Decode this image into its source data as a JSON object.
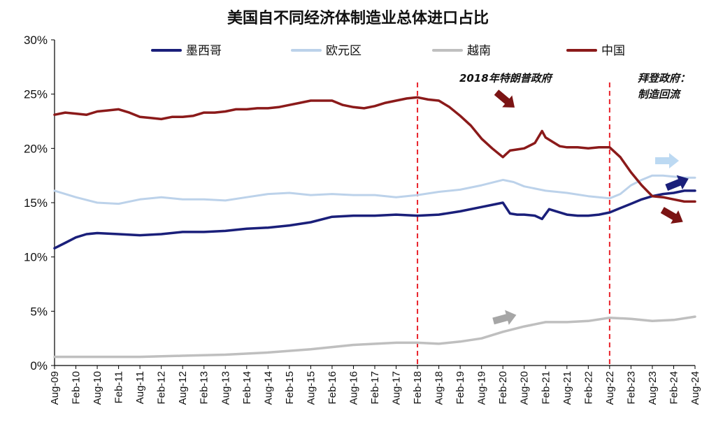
{
  "chart_data": {
    "type": "line",
    "title": "美国自不同经济体制造业总体进口占比",
    "xlabel": "",
    "ylabel": "",
    "ylim": [
      0,
      30
    ],
    "yticks": [
      "0%",
      "5%",
      "10%",
      "15%",
      "20%",
      "25%",
      "30%"
    ],
    "xlim": [
      "2009-08",
      "2024-08"
    ],
    "xticks": [
      "Aug-09",
      "Feb-10",
      "Aug-10",
      "Feb-11",
      "Aug-11",
      "Feb-12",
      "Aug-12",
      "Feb-13",
      "Aug-13",
      "Feb-14",
      "Aug-14",
      "Feb-15",
      "Aug-15",
      "Feb-16",
      "Aug-16",
      "Feb-17",
      "Aug-17",
      "Feb-18",
      "Aug-18",
      "Feb-19",
      "Aug-19",
      "Feb-20",
      "Aug-20",
      "Feb-21",
      "Aug-21",
      "Feb-22",
      "Aug-22",
      "Feb-23",
      "Aug-23",
      "Feb-24",
      "Aug-24"
    ],
    "grid": false,
    "legend_position": "top",
    "series": [
      {
        "name": "墨西哥",
        "color": "#1a1f7a",
        "x": [
          "2009-08",
          "2009-11",
          "2010-02",
          "2010-05",
          "2010-08",
          "2011-02",
          "2011-08",
          "2012-02",
          "2012-08",
          "2013-02",
          "2013-08",
          "2014-02",
          "2014-08",
          "2015-02",
          "2015-08",
          "2016-02",
          "2016-08",
          "2017-02",
          "2017-08",
          "2018-02",
          "2018-08",
          "2019-02",
          "2019-08",
          "2019-11",
          "2020-02",
          "2020-04",
          "2020-06",
          "2020-08",
          "2020-11",
          "2021-01",
          "2021-03",
          "2021-05",
          "2021-08",
          "2021-11",
          "2022-02",
          "2022-05",
          "2022-08",
          "2022-11",
          "2023-02",
          "2023-05",
          "2023-08",
          "2023-11",
          "2024-02",
          "2024-05",
          "2024-08"
        ],
        "values": [
          10.8,
          11.3,
          11.8,
          12.1,
          12.2,
          12.1,
          12.0,
          12.1,
          12.3,
          12.3,
          12.4,
          12.6,
          12.7,
          12.9,
          13.2,
          13.7,
          13.8,
          13.8,
          13.9,
          13.8,
          13.9,
          14.2,
          14.6,
          14.8,
          15.0,
          14.0,
          13.9,
          13.9,
          13.8,
          13.5,
          14.4,
          14.2,
          13.9,
          13.8,
          13.8,
          13.9,
          14.1,
          14.5,
          14.9,
          15.3,
          15.6,
          15.8,
          15.9,
          16.1,
          16.1
        ]
      },
      {
        "name": "欧元区",
        "color": "#bcd2ea",
        "x": [
          "2009-08",
          "2009-11",
          "2010-02",
          "2010-08",
          "2011-02",
          "2011-08",
          "2012-02",
          "2012-08",
          "2013-02",
          "2013-08",
          "2014-02",
          "2014-08",
          "2015-02",
          "2015-08",
          "2016-02",
          "2016-08",
          "2017-02",
          "2017-08",
          "2018-02",
          "2018-08",
          "2019-02",
          "2019-08",
          "2020-02",
          "2020-05",
          "2020-08",
          "2021-02",
          "2021-08",
          "2022-02",
          "2022-05",
          "2022-08",
          "2022-11",
          "2023-02",
          "2023-05",
          "2023-08",
          "2023-11",
          "2024-02",
          "2024-05",
          "2024-08"
        ],
        "values": [
          16.1,
          15.8,
          15.5,
          15.0,
          14.9,
          15.3,
          15.5,
          15.3,
          15.3,
          15.2,
          15.5,
          15.8,
          15.9,
          15.7,
          15.8,
          15.7,
          15.7,
          15.5,
          15.7,
          16.0,
          16.2,
          16.6,
          17.1,
          16.9,
          16.5,
          16.1,
          15.9,
          15.6,
          15.5,
          15.4,
          15.8,
          16.6,
          17.1,
          17.5,
          17.5,
          17.4,
          17.3,
          17.3
        ]
      },
      {
        "name": "越南",
        "color": "#bfbfbf",
        "x": [
          "2009-08",
          "2010-08",
          "2011-08",
          "2012-08",
          "2013-08",
          "2014-08",
          "2015-08",
          "2016-08",
          "2017-08",
          "2018-02",
          "2018-08",
          "2019-02",
          "2019-08",
          "2020-02",
          "2020-08",
          "2021-02",
          "2021-08",
          "2022-02",
          "2022-08",
          "2023-02",
          "2023-08",
          "2024-02",
          "2024-08"
        ],
        "values": [
          0.8,
          0.8,
          0.8,
          0.9,
          1.0,
          1.2,
          1.5,
          1.9,
          2.1,
          2.1,
          2.0,
          2.2,
          2.5,
          3.1,
          3.6,
          4.0,
          4.0,
          4.1,
          4.4,
          4.3,
          4.1,
          4.2,
          4.5
        ]
      },
      {
        "name": "中国",
        "color": "#8b1a1a",
        "x": [
          "2009-08",
          "2009-11",
          "2010-02",
          "2010-05",
          "2010-08",
          "2010-11",
          "2011-02",
          "2011-05",
          "2011-08",
          "2011-11",
          "2012-02",
          "2012-05",
          "2012-08",
          "2012-11",
          "2013-02",
          "2013-05",
          "2013-08",
          "2013-11",
          "2014-02",
          "2014-05",
          "2014-08",
          "2014-11",
          "2015-02",
          "2015-05",
          "2015-08",
          "2015-11",
          "2016-02",
          "2016-05",
          "2016-08",
          "2016-11",
          "2017-02",
          "2017-05",
          "2017-08",
          "2017-11",
          "2018-02",
          "2018-05",
          "2018-08",
          "2018-11",
          "2019-02",
          "2019-05",
          "2019-08",
          "2019-11",
          "2020-02",
          "2020-04",
          "2020-06",
          "2020-08",
          "2020-11",
          "2021-01",
          "2021-02",
          "2021-04",
          "2021-06",
          "2021-08",
          "2021-11",
          "2022-02",
          "2022-05",
          "2022-08",
          "2022-11",
          "2023-02",
          "2023-05",
          "2023-08",
          "2023-11",
          "2024-02",
          "2024-05",
          "2024-08"
        ],
        "values": [
          23.1,
          23.3,
          23.2,
          23.1,
          23.4,
          23.5,
          23.6,
          23.3,
          22.9,
          22.8,
          22.7,
          22.9,
          22.9,
          23.0,
          23.3,
          23.3,
          23.4,
          23.6,
          23.6,
          23.7,
          23.7,
          23.8,
          24.0,
          24.2,
          24.4,
          24.4,
          24.4,
          24.0,
          23.8,
          23.7,
          23.9,
          24.2,
          24.4,
          24.6,
          24.7,
          24.5,
          24.4,
          23.8,
          23.0,
          22.1,
          20.9,
          20.0,
          19.2,
          19.8,
          19.9,
          20.0,
          20.5,
          21.6,
          21.0,
          20.6,
          20.2,
          20.1,
          20.1,
          20.0,
          20.1,
          20.1,
          19.2,
          17.8,
          16.6,
          15.6,
          15.5,
          15.3,
          15.1,
          15.1
        ]
      }
    ],
    "vertical_lines": [
      {
        "x": "2018-02",
        "color": "#e8222a",
        "style": "dashed"
      },
      {
        "x": "2022-08",
        "color": "#e8222a",
        "style": "dashed"
      }
    ],
    "annotations": {
      "trump_label": "2018年特朗普政府",
      "biden_label_1": "拜登政府：",
      "biden_label_2": "制造回流"
    },
    "arrows": [
      {
        "name": "china-arrow-2018",
        "color": "#7b1414",
        "direction": "down-right"
      },
      {
        "name": "china-arrow-2024",
        "color": "#7b1414",
        "direction": "down-right"
      },
      {
        "name": "mexico-arrow-2024",
        "color": "#1a1f7a",
        "direction": "up-right"
      },
      {
        "name": "euro-arrow-2024",
        "color": "#bcd9f2",
        "direction": "right"
      },
      {
        "name": "vietnam-arrow",
        "color": "#a6a6a6",
        "direction": "up-right"
      }
    ]
  }
}
